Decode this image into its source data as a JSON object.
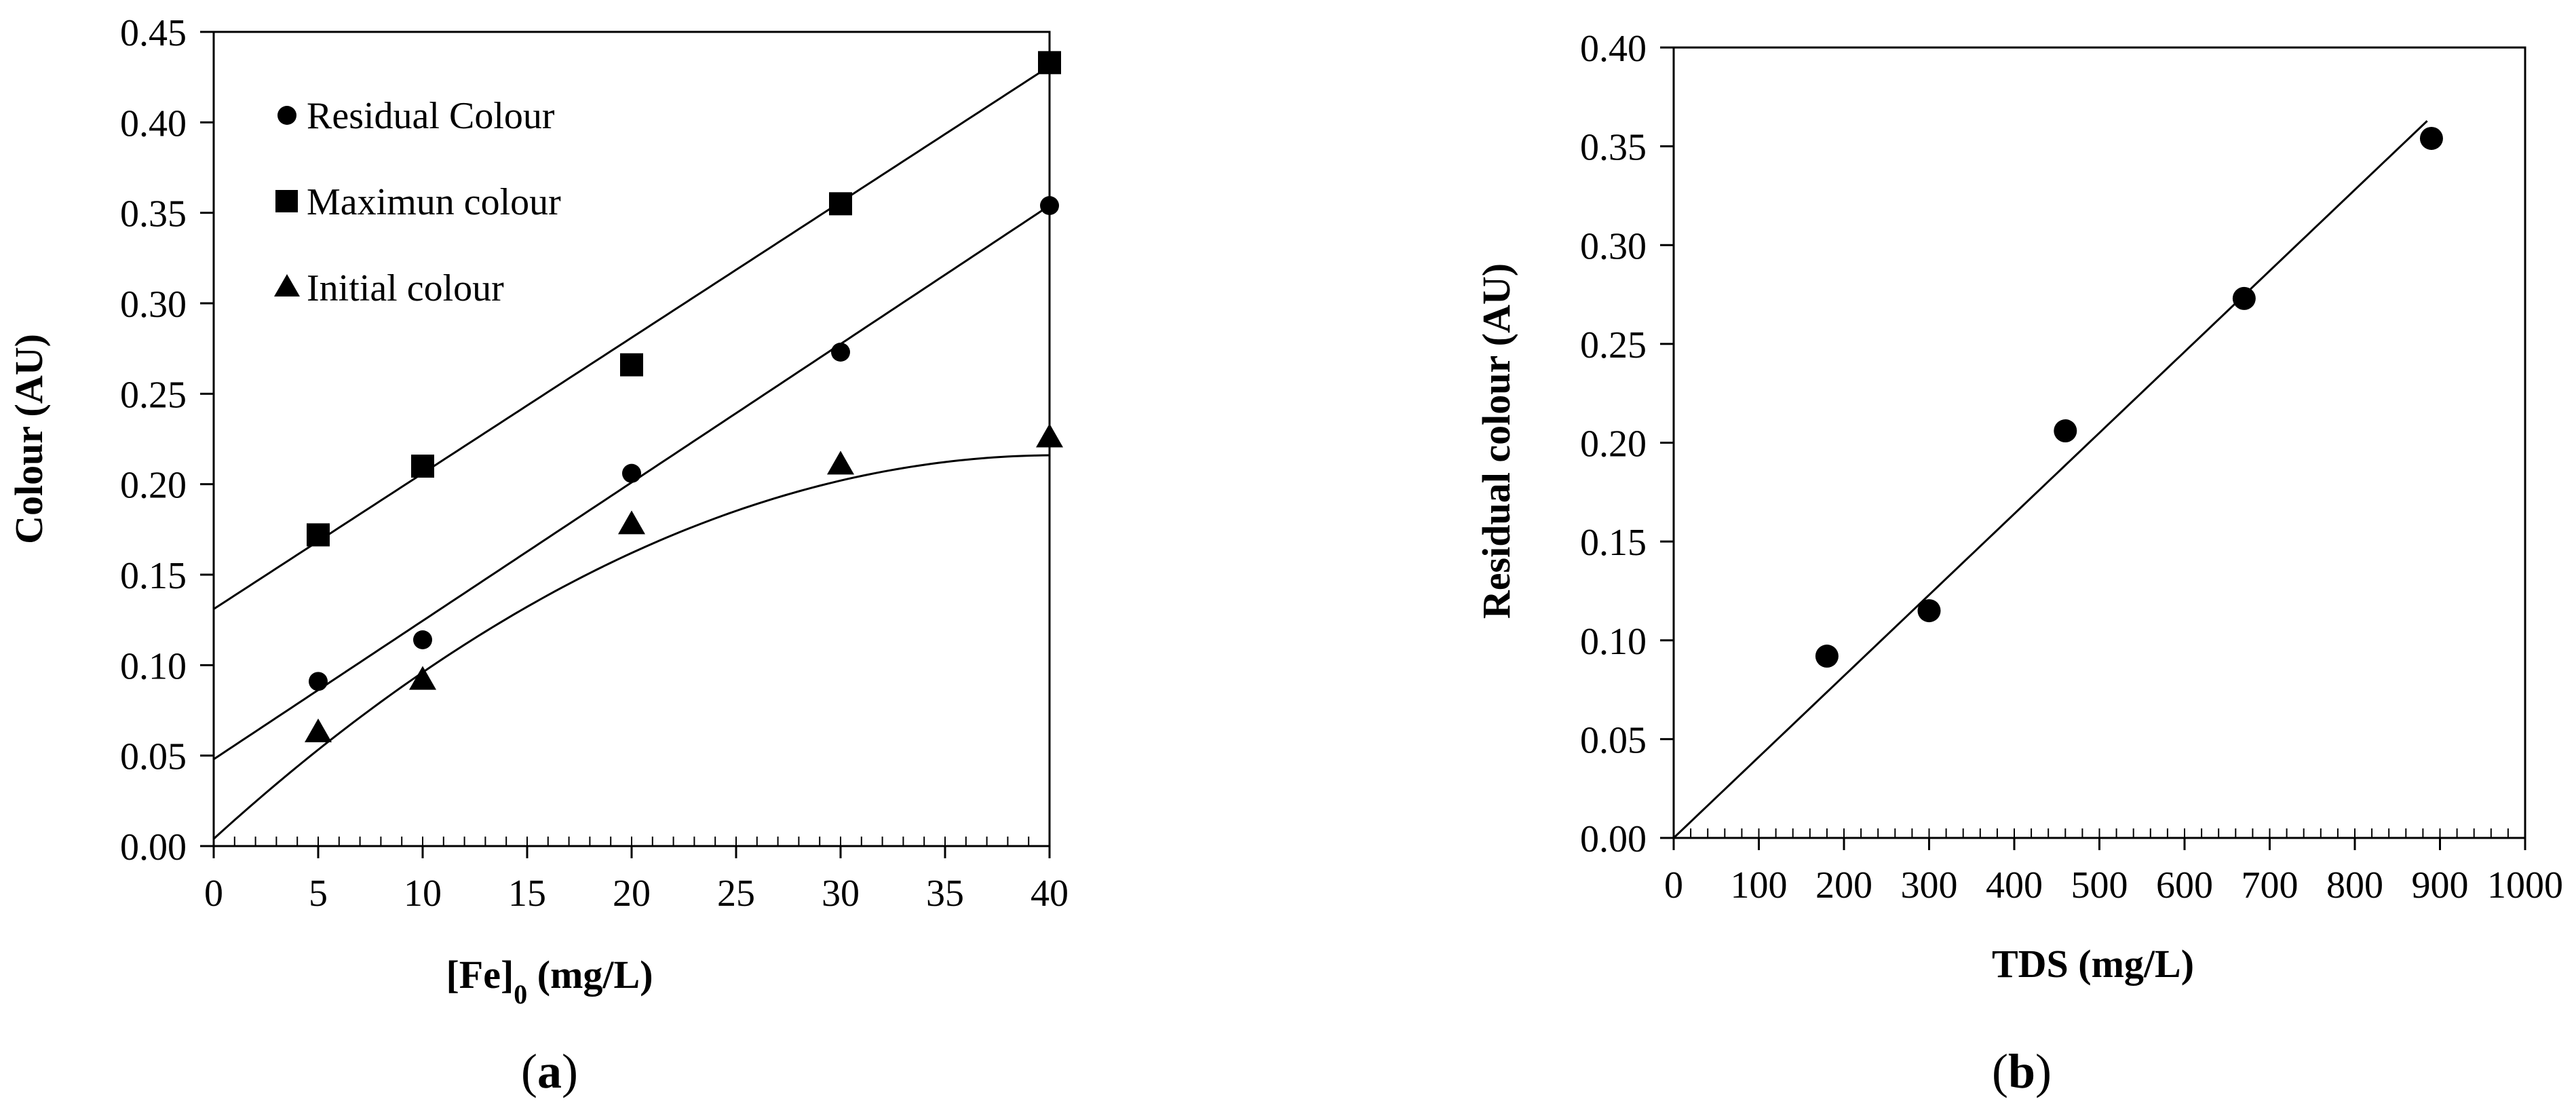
{
  "chart_data": [
    {
      "type": "scatter",
      "panel_label_open": "(",
      "panel_label_letter": "a",
      "panel_label_close": ")",
      "xlabel_main": "[Fe]",
      "xlabel_sub": "0",
      "xlabel_rest": " (mg/L)",
      "ylabel": "Colour (AU)",
      "xlim": [
        0,
        40
      ],
      "ylim": [
        0,
        0.45
      ],
      "x_ticks": [
        "0",
        "5",
        "10",
        "15",
        "20",
        "25",
        "30",
        "35",
        "40"
      ],
      "y_ticks": [
        "0.00",
        "0.05",
        "0.10",
        "0.15",
        "0.20",
        "0.25",
        "0.30",
        "0.35",
        "0.40",
        "0.45"
      ],
      "legend_position": "top-left",
      "grid": false,
      "series": [
        {
          "name": "Residual Colour",
          "marker": "circle",
          "x": [
            5,
            10,
            20,
            30,
            40
          ],
          "y": [
            0.091,
            0.114,
            0.206,
            0.273,
            0.354
          ],
          "fit": {
            "type": "linear",
            "intercept": 0.048,
            "slope": 0.00765
          }
        },
        {
          "name": "Maximun colour",
          "marker": "square",
          "x": [
            5,
            10,
            20,
            30,
            40
          ],
          "y": [
            0.172,
            0.21,
            0.266,
            0.355,
            0.433
          ],
          "fit": {
            "type": "linear",
            "intercept": 0.131,
            "slope": 0.0075
          }
        },
        {
          "name": "Initial colour",
          "marker": "triangle",
          "x": [
            5,
            10,
            20,
            30,
            40
          ],
          "y": [
            0.063,
            0.092,
            0.178,
            0.211,
            0.226
          ],
          "fit": {
            "type": "quadratic",
            "a": -0.00013,
            "b": 0.0105,
            "c": 0.004
          }
        }
      ]
    },
    {
      "type": "scatter",
      "panel_label_open": "(",
      "panel_label_letter": "b",
      "panel_label_close": ")",
      "xlabel_main": "TDS (mg/L)",
      "ylabel": "Residual colour  (AU)",
      "xlim": [
        0,
        1000
      ],
      "ylim": [
        0,
        0.4
      ],
      "x_ticks": [
        "0",
        "100",
        "200",
        "300",
        "400",
        "500",
        "600",
        "700",
        "800",
        "900",
        "1000"
      ],
      "y_ticks": [
        "0.00",
        "0.05",
        "0.10",
        "0.15",
        "0.20",
        "0.25",
        "0.30",
        "0.35",
        "0.40"
      ],
      "grid": false,
      "series": [
        {
          "marker": "circle",
          "x": [
            180,
            300,
            460,
            670,
            890
          ],
          "y": [
            0.092,
            0.115,
            0.206,
            0.273,
            0.354
          ],
          "fit": {
            "type": "linear",
            "intercept": 0,
            "slope": 0.00041,
            "x_range": [
              0,
              885
            ]
          }
        }
      ]
    }
  ]
}
